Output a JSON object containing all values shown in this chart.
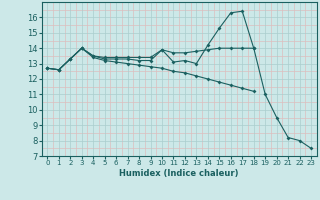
{
  "background_color": "#cce8e8",
  "grid_color_major": "#aacece",
  "grid_color_minor": "#ddbebe",
  "line_color": "#1a6060",
  "xlabel": "Humidex (Indice chaleur)",
  "ylim": [
    7,
    17
  ],
  "xlim": [
    -0.5,
    23.5
  ],
  "yticks": [
    7,
    8,
    9,
    10,
    11,
    12,
    13,
    14,
    15,
    16
  ],
  "xticks": [
    0,
    1,
    2,
    3,
    4,
    5,
    6,
    7,
    8,
    9,
    10,
    11,
    12,
    13,
    14,
    15,
    16,
    17,
    18,
    19,
    20,
    21,
    22,
    23
  ],
  "series": {
    "line1": {
      "x": [
        0,
        1,
        2,
        3,
        4,
        5,
        6,
        7,
        8,
        9,
        10,
        11,
        12,
        13,
        14,
        15,
        16,
        17,
        18,
        19,
        20,
        21,
        22,
        23
      ],
      "y": [
        12.7,
        12.6,
        13.3,
        14.0,
        13.5,
        13.3,
        13.3,
        13.3,
        13.2,
        13.2,
        13.9,
        13.1,
        13.2,
        13.0,
        14.2,
        15.3,
        16.3,
        16.4,
        14.0,
        11.0,
        9.5,
        8.2,
        8.0,
        7.5
      ]
    },
    "line2": {
      "x": [
        0,
        1,
        2,
        3,
        4,
        5,
        6,
        7,
        8,
        9,
        10,
        11,
        12,
        13,
        14,
        15,
        16,
        17,
        18
      ],
      "y": [
        12.7,
        12.6,
        13.3,
        14.0,
        13.5,
        13.4,
        13.4,
        13.4,
        13.4,
        13.4,
        13.9,
        13.7,
        13.7,
        13.8,
        13.9,
        14.0,
        14.0,
        14.0,
        14.0
      ]
    },
    "line3": {
      "x": [
        0,
        1,
        2,
        3,
        4,
        5,
        6,
        7,
        8,
        9,
        10,
        11,
        12,
        13,
        14,
        15,
        16,
        17,
        18
      ],
      "y": [
        12.7,
        12.6,
        13.3,
        14.0,
        13.4,
        13.2,
        13.1,
        13.0,
        12.9,
        12.8,
        12.7,
        12.5,
        12.4,
        12.2,
        12.0,
        11.8,
        11.6,
        11.4,
        11.2
      ]
    }
  }
}
